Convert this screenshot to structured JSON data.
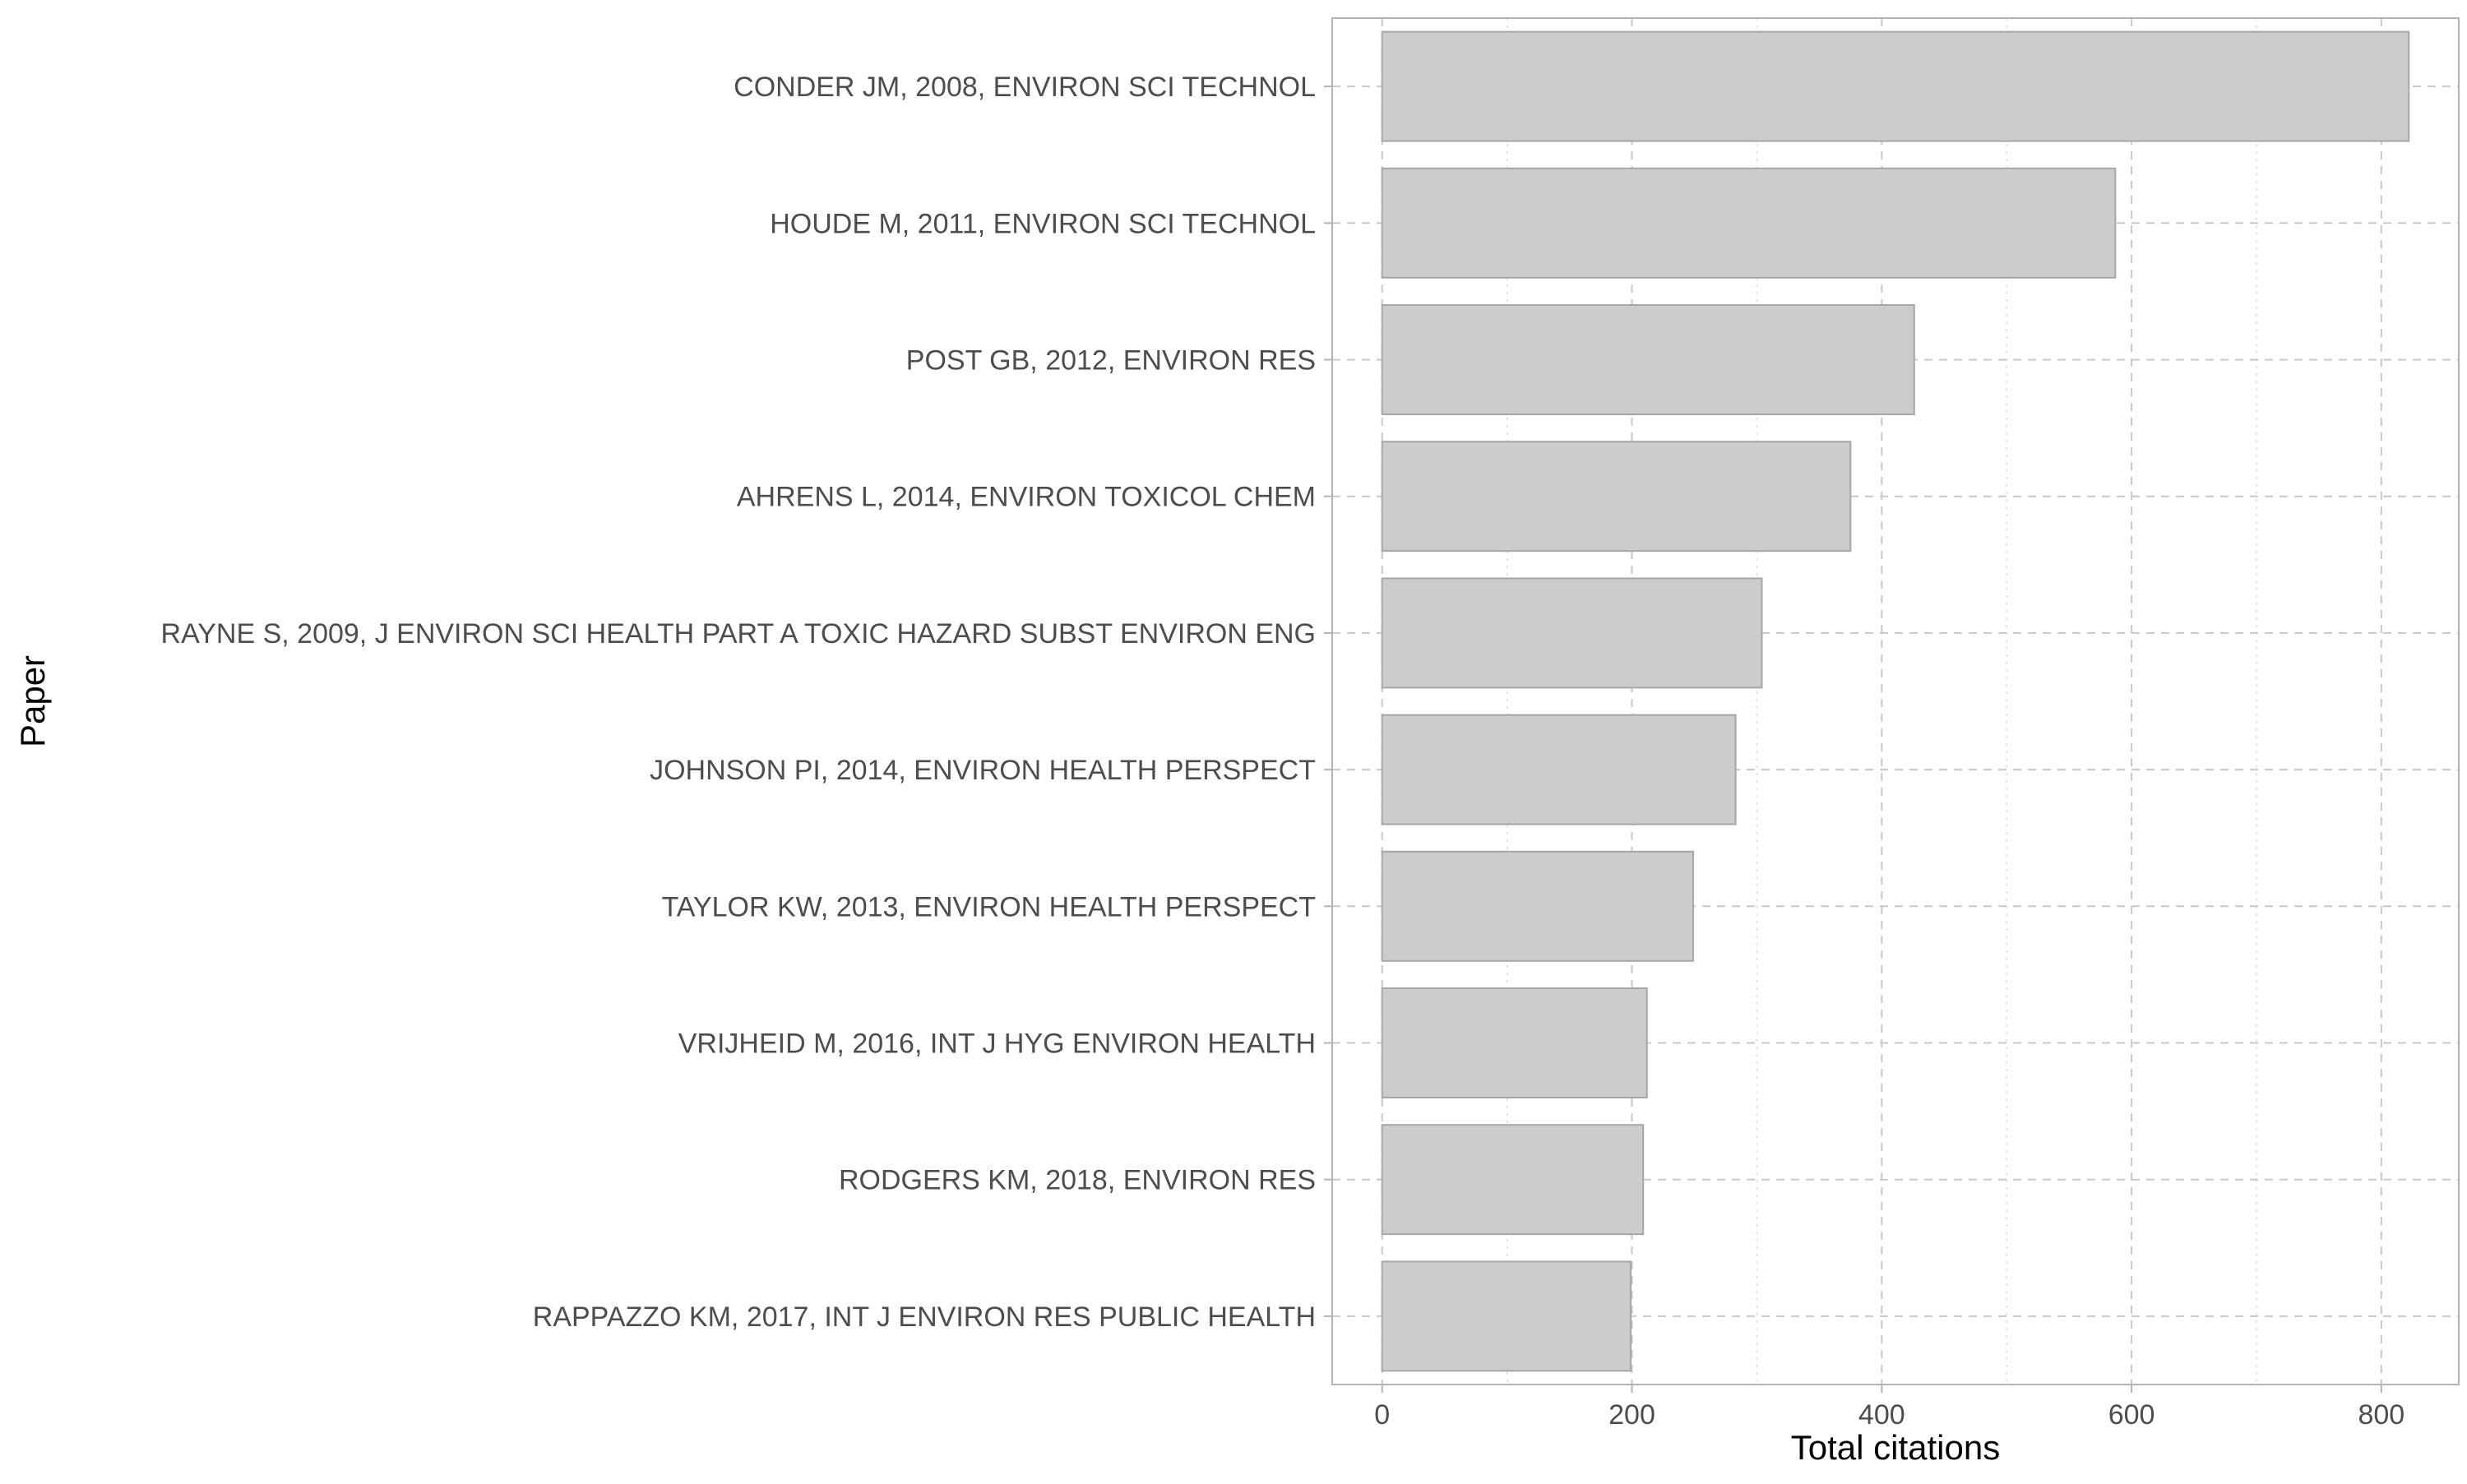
{
  "chart_data": {
    "type": "bar",
    "orientation": "horizontal",
    "categories": [
      "CONDER JM, 2008, ENVIRON SCI TECHNOL",
      "HOUDE M, 2011, ENVIRON SCI TECHNOL",
      "POST GB, 2012, ENVIRON RES",
      "AHRENS L, 2014, ENVIRON TOXICOL CHEM",
      "RAYNE S, 2009, J ENVIRON SCI HEALTH PART A TOXIC HAZARD SUBST ENVIRON ENG",
      "JOHNSON PI, 2014, ENVIRON HEALTH PERSPECT",
      "TAYLOR KW, 2013, ENVIRON HEALTH PERSPECT",
      "VRIJHEID M, 2016, INT J HYG ENVIRON HEALTH",
      "RODGERS KM, 2018, ENVIRON RES",
      "RAPPAZZO KM, 2017, INT J ENVIRON RES PUBLIC HEALTH"
    ],
    "values": [
      822,
      587,
      426,
      375,
      304,
      283,
      249,
      212,
      209,
      199
    ],
    "xlabel": "Total citations",
    "ylabel": "Paper",
    "xlim": [
      -40,
      862
    ],
    "xticks": [
      "0",
      "200",
      "400",
      "600",
      "800"
    ],
    "xtick_values": [
      0,
      200,
      400,
      600,
      800
    ],
    "grid": true,
    "legend": "none",
    "bar_color": "#cccccc",
    "bar_outline_color": "#a6a6a6"
  }
}
